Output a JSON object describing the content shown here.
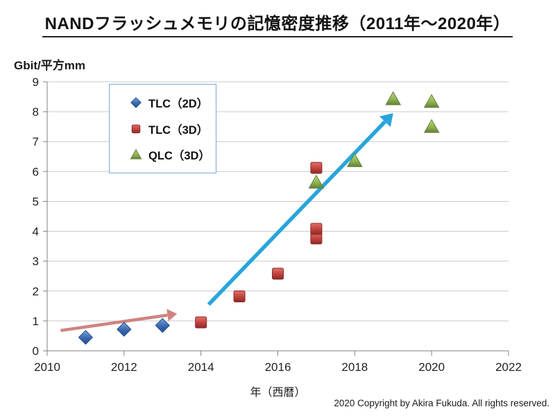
{
  "title": "NANDフラッシュメモリの記憶密度推移（2011年～2020年）",
  "y_unit_label": "Gbit/平方mm",
  "x_axis_label": "年（西暦）",
  "copyright": "2020 Copyright by Akira Fukuda. All rights reserved.",
  "legend": {
    "border_color": "#7da7d9",
    "items": [
      {
        "label": "TLC（2D）",
        "marker": "diamond"
      },
      {
        "label": "TLC（3D）",
        "marker": "square"
      },
      {
        "label": "QLC（3D）",
        "marker": "triangle"
      }
    ]
  },
  "chart_data": {
    "type": "scatter",
    "title": "NANDフラッシュメモリの記憶密度推移（2011年～2020年）",
    "xlabel": "年（西暦）",
    "ylabel": "Gbit/平方mm",
    "xlim": [
      2010,
      2022
    ],
    "ylim": [
      0,
      9
    ],
    "x_ticks": [
      2010,
      2012,
      2014,
      2016,
      2018,
      2020,
      2022
    ],
    "y_ticks": [
      0,
      1,
      2,
      3,
      4,
      5,
      6,
      7,
      8,
      9
    ],
    "grid": "horizontal",
    "legend_position": "upper-left-inside",
    "axis_color": "#808080",
    "grid_color": "#c9c9c9",
    "series": [
      {
        "name": "TLC（2D）",
        "id": "tlc-2d",
        "marker": "diamond",
        "color": "#3a67ae",
        "edge": "#24508f",
        "light": "#7ba3dc",
        "points": [
          [
            2011,
            0.45
          ],
          [
            2012,
            0.72
          ],
          [
            2013,
            0.85
          ]
        ]
      },
      {
        "name": "TLC（3D）",
        "id": "tlc-3d",
        "marker": "square",
        "color": "#c0403c",
        "edge": "#8c2a27",
        "light": "#e0706b",
        "points": [
          [
            2014,
            0.95
          ],
          [
            2015,
            1.82
          ],
          [
            2016,
            2.58
          ],
          [
            2017,
            3.76
          ],
          [
            2017,
            4.08
          ],
          [
            2017,
            6.12
          ]
        ]
      },
      {
        "name": "QLC（3D）",
        "id": "qlc-3d",
        "marker": "triangle",
        "color": "#8fb64e",
        "edge": "#64803a",
        "light": "#bcd68a",
        "points": [
          [
            2017,
            5.64
          ],
          [
            2018,
            6.36
          ],
          [
            2019,
            8.43
          ],
          [
            2020,
            7.5
          ],
          [
            2020,
            8.34
          ]
        ]
      }
    ],
    "annotations": [
      {
        "type": "arrow",
        "name": "slow-growth-arrow",
        "from": [
          2010.35,
          0.68
        ],
        "to": [
          2013.38,
          1.24
        ],
        "color": "#cf8380",
        "width": 4.5
      },
      {
        "type": "arrow",
        "name": "rapid-growth-arrow",
        "from": [
          2014.2,
          1.55
        ],
        "to": [
          2019.0,
          7.95
        ],
        "color": "#27a5dc",
        "width": 5.5
      }
    ]
  }
}
